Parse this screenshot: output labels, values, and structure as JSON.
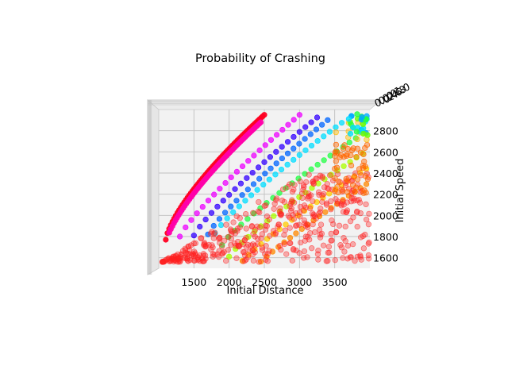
{
  "chart_data": {
    "type": "scatter",
    "title": "Probability of Crashing",
    "xlabel": "Initial Distance",
    "ylabel": "Initial Speed",
    "zlabel": "",
    "x_ticks": [
      "1500",
      "2000",
      "2500",
      "3000",
      "3500"
    ],
    "y_ticks": [
      "1600",
      "1800",
      "2000",
      "2200",
      "2400",
      "2600",
      "2800"
    ],
    "z_ticks": [
      "0.0",
      "0.2",
      "0.4",
      "0.6",
      "0.8",
      "1.0"
    ],
    "xlim": [
      1000,
      4000
    ],
    "ylim": [
      1500,
      3000
    ],
    "zlim": [
      0,
      1
    ],
    "colormap": "hsv",
    "grid": true,
    "pane_color": "#f2f2f2",
    "series": [
      {
        "boundary_bands": [
          {
            "offset_speed": 0,
            "color": "#ff0022"
          },
          {
            "offset_speed": -40,
            "color": "#ff00aa"
          },
          {
            "offset_speed": -80,
            "color": "#ee00ff"
          },
          {
            "offset_speed": -120,
            "color": "#3300ff"
          },
          {
            "offset_speed": -170,
            "color": "#0066ff"
          },
          {
            "offset_speed": -220,
            "color": "#00ddff"
          },
          {
            "offset_speed": -270,
            "color": "#22ff44"
          },
          {
            "offset_speed": -320,
            "color": "#aaff00"
          },
          {
            "offset_speed": -370,
            "color": "#ffcc00"
          },
          {
            "offset_speed": -420,
            "color": "#ff8800"
          }
        ],
        "safe_region_color": "#ff2020",
        "safe_region_points_approx": 420
      }
    ]
  }
}
